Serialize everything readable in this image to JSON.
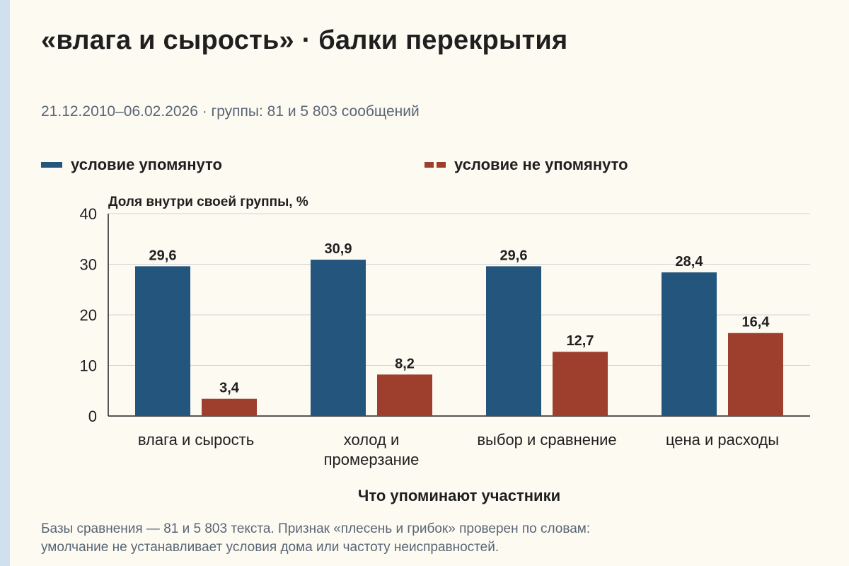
{
  "title": "«влага и сырость» · балки перекрытия",
  "subtitle": "21.12.2010–06.02.2026 · группы: 81 и 5 803 сообщений",
  "footnote_line1": "Базы сравнения — 81 и 5 803 текста. Признак «плесень и грибок» проверен по словам:",
  "footnote_line2": "умолчание не устанавливает условия дома или частоту неисправностей.",
  "colors": {
    "series1": "#24557d",
    "series2": "#9e3f2d"
  },
  "chart_data": {
    "type": "bar",
    "ylabel": "Доля внутри своей группы, %",
    "xlabel": "Что упоминают участники",
    "ylim": [
      0,
      40
    ],
    "yticks": [
      0,
      10,
      20,
      30,
      40
    ],
    "grid": true,
    "legend_position": "top",
    "categories": [
      [
        "влага и сырость"
      ],
      [
        "холод и",
        "промерзание"
      ],
      [
        "выбор и сравнение"
      ],
      [
        "цена и расходы"
      ]
    ],
    "series": [
      {
        "name": "условие упомянуто",
        "values": [
          29.6,
          30.9,
          29.6,
          28.4
        ],
        "labels": [
          "29,6",
          "30,9",
          "29,6",
          "28,4"
        ]
      },
      {
        "name": "условие не упомянуто",
        "values": [
          3.4,
          8.2,
          12.7,
          16.4
        ],
        "labels": [
          "3,4",
          "8,2",
          "12,7",
          "16,4"
        ]
      }
    ]
  }
}
